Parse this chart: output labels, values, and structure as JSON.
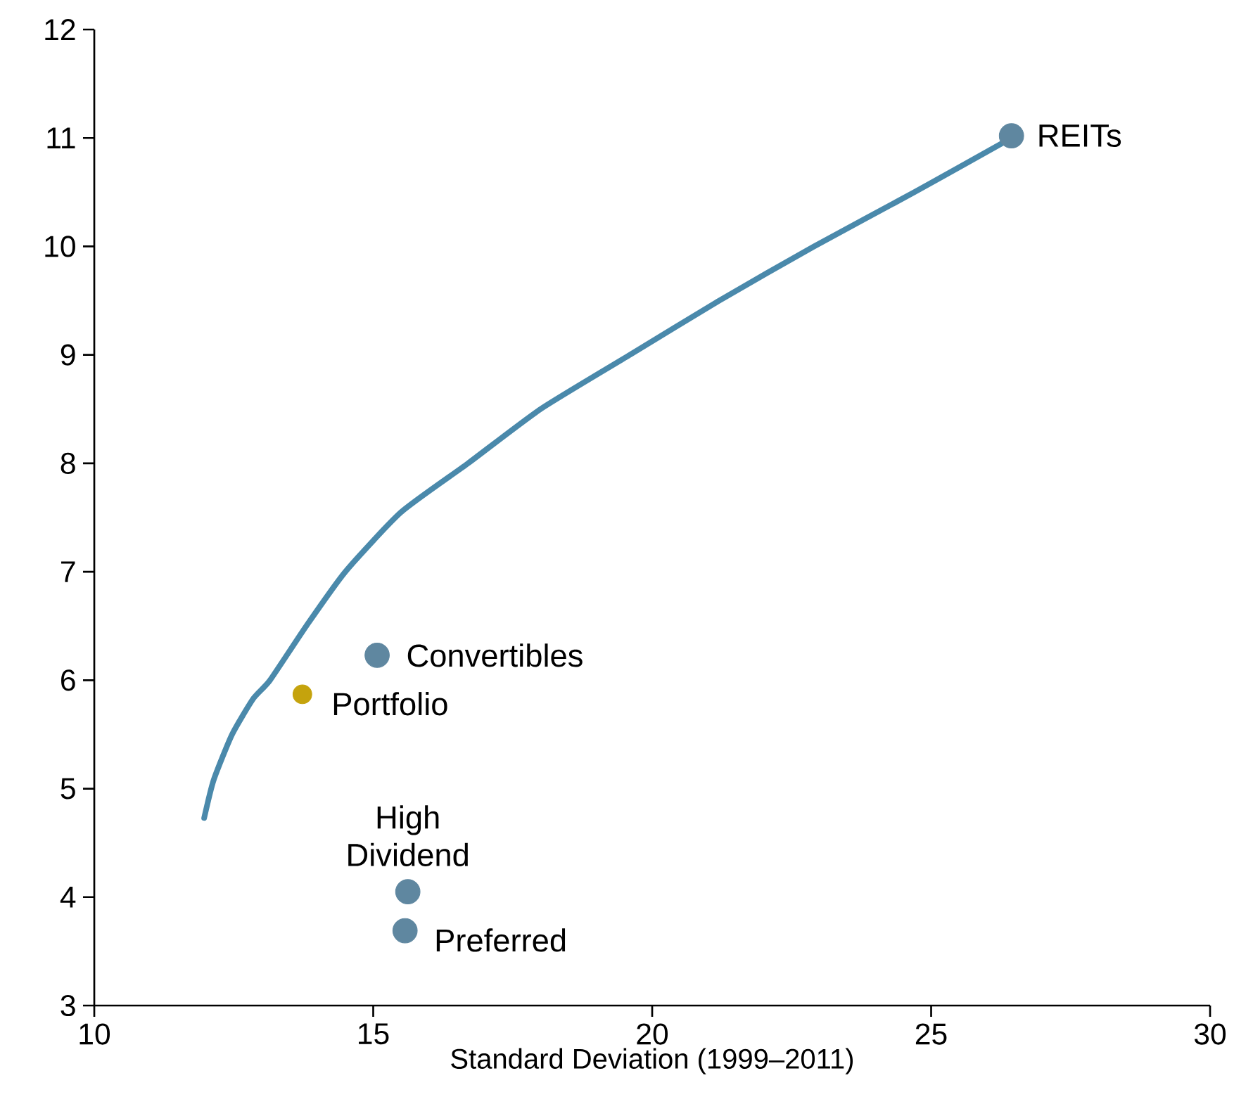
{
  "chart_data": {
    "type": "scatter",
    "xlabel": "Standard Deviation (1999–2011)",
    "xlim": [
      10,
      30
    ],
    "xticks": [
      10,
      15,
      20,
      25,
      30
    ],
    "ylim": [
      3,
      12
    ],
    "yticks": [
      3,
      4,
      5,
      6,
      7,
      8,
      9,
      10,
      11,
      12
    ],
    "grid": false,
    "series": [
      {
        "type": "line",
        "color": "#4a89ab",
        "x": [
          11.97,
          12.14,
          12.47,
          12.85,
          13.15,
          13.8,
          14.5,
          15.5,
          16.7,
          18.0,
          19.6,
          21.2,
          22.9,
          24.7,
          26.44
        ],
        "values": [
          4.73,
          5.08,
          5.5,
          5.83,
          6.0,
          6.5,
          7.0,
          7.55,
          8.0,
          8.5,
          9.0,
          9.5,
          10.0,
          10.5,
          11.0
        ],
        "marker": "none",
        "line_style": "solid"
      },
      {
        "name": "REITs",
        "color": "#5f87a0",
        "marker": "circle",
        "x": [
          26.44
        ],
        "values": [
          11.02
        ]
      },
      {
        "name": "Convertibles",
        "color": "#5f87a0",
        "marker": "circle",
        "x": [
          15.07
        ],
        "values": [
          6.23
        ]
      },
      {
        "name": "Portfolio",
        "color": "#c5a30d",
        "marker": "circle",
        "x": [
          13.73
        ],
        "values": [
          5.87
        ]
      },
      {
        "name": "High Dividend",
        "color": "#5f87a0",
        "marker": "circle",
        "x": [
          15.62
        ],
        "values": [
          4.05
        ]
      },
      {
        "name": "Preferred",
        "color": "#5f87a0",
        "marker": "circle",
        "x": [
          15.57
        ],
        "values": [
          3.69
        ]
      }
    ]
  }
}
